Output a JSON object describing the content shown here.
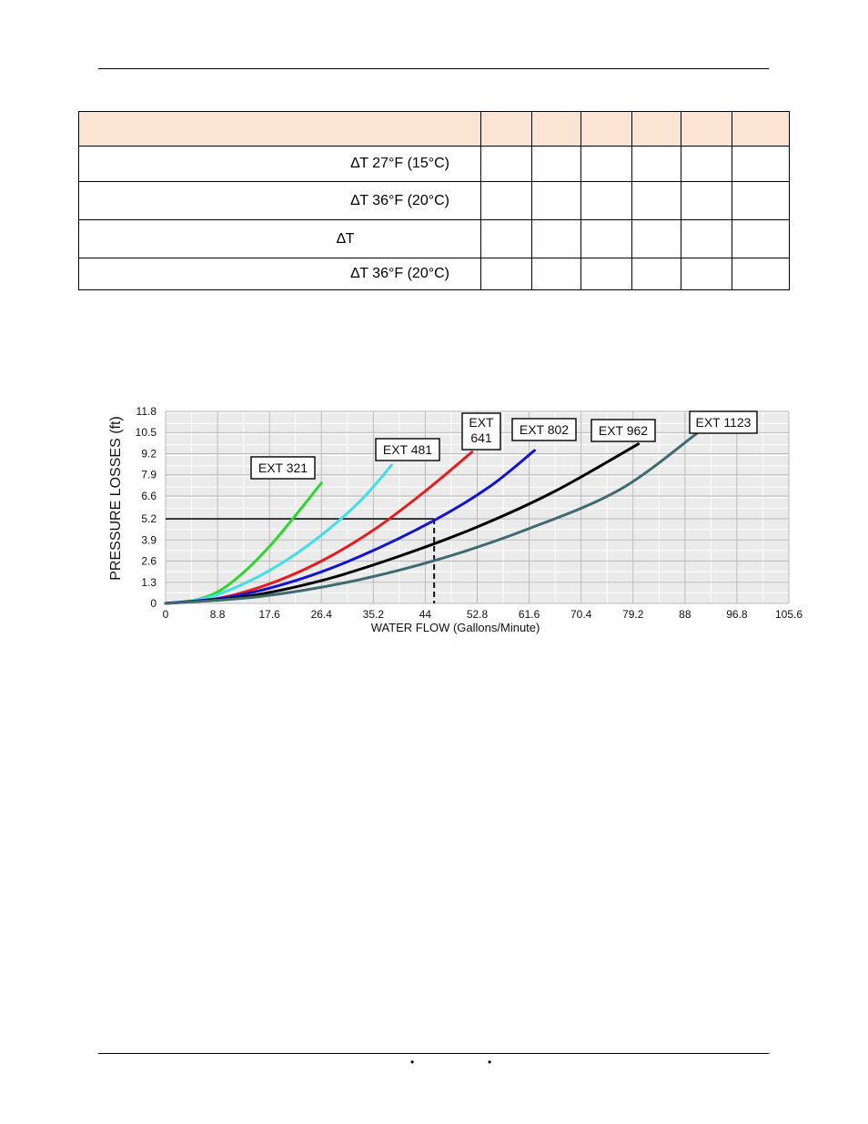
{
  "table": {
    "rows": [
      {
        "label": "∆T 27°F  (15°C)",
        "cells": [
          "",
          "",
          "",
          "",
          "",
          ""
        ]
      },
      {
        "label": "∆T 36°F  (20°C)",
        "cells": [
          "",
          "",
          "",
          "",
          "",
          ""
        ]
      },
      {
        "label": "∆T",
        "cells": [
          "",
          "",
          "",
          "",
          "",
          ""
        ]
      },
      {
        "label": "∆T 36°F  (20°C)",
        "cells": [
          "",
          "",
          "",
          "",
          "",
          ""
        ]
      }
    ]
  },
  "footer": {
    "separator": "•"
  },
  "chart_data": {
    "type": "line",
    "xlabel": "WATER FLOW (Gallons/Minute)",
    "ylabel": "PRESSURE LOSSES (ft)",
    "xlim": [
      0,
      105.6
    ],
    "ylim": [
      0,
      11.8
    ],
    "x_ticks": [
      "0",
      "8.8",
      "17.6",
      "26.4",
      "35.2",
      "44",
      "52.8",
      "61.6",
      "70.4",
      "79.2",
      "88",
      "96.8",
      "105.6"
    ],
    "y_ticks": [
      "0",
      "1.3",
      "2.6",
      "3.9",
      "5.2",
      "6.6",
      "7.9",
      "9.2",
      "10.5",
      "11.8"
    ],
    "grid": true,
    "series": [
      {
        "name": "EXT 321",
        "color": "#2bd82b",
        "x": [
          0,
          4.4,
          8.8,
          13.2,
          17.6,
          22,
          26.4
        ],
        "y": [
          0,
          0.15,
          0.7,
          1.9,
          3.5,
          5.4,
          7.4
        ]
      },
      {
        "name": "EXT 481",
        "color": "#3fe0e8",
        "x": [
          0,
          6.6,
          13.2,
          19.8,
          26.4,
          33,
          38.3
        ],
        "y": [
          0,
          0.3,
          1.2,
          2.5,
          4.2,
          6.3,
          8.5
        ]
      },
      {
        "name": "EXT 641",
        "color": "#e81c1c",
        "x": [
          0,
          8.8,
          17.6,
          26.4,
          35.2,
          44,
          51.9
        ],
        "y": [
          0,
          0.3,
          1.2,
          2.6,
          4.5,
          6.9,
          9.3
        ]
      },
      {
        "name": "EXT 802",
        "color": "#1414d0",
        "x": [
          0,
          11,
          22,
          33,
          45.5,
          55,
          62.5
        ],
        "y": [
          0,
          0.4,
          1.4,
          2.9,
          5.1,
          7.2,
          9.4
        ]
      },
      {
        "name": "EXT 962",
        "color": "#000000",
        "x": [
          0,
          13.2,
          26.4,
          39.6,
          52.8,
          66,
          80.1
        ],
        "y": [
          0,
          0.4,
          1.4,
          2.9,
          4.7,
          6.9,
          9.8
        ]
      },
      {
        "name": "EXT 1123",
        "color": "#3f6b6e",
        "x": [
          0,
          15.4,
          30.8,
          46.2,
          61.6,
          77,
          90.2
        ],
        "y": [
          0,
          0.4,
          1.3,
          2.7,
          4.6,
          7.0,
          10.5
        ]
      }
    ],
    "annotations": {
      "reference_flow": 45.5,
      "reference_pressure": 5.2
    }
  }
}
